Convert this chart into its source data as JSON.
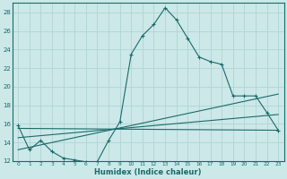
{
  "background_color": "#cce8e8",
  "grid_color": "#b0d4d4",
  "line_color": "#1a6b6b",
  "xlabel": "Humidex (Indice chaleur)",
  "xlim": [
    -0.5,
    23.5
  ],
  "ylim": [
    12,
    29
  ],
  "yticks": [
    12,
    14,
    16,
    18,
    20,
    22,
    24,
    26,
    28
  ],
  "xticks": [
    0,
    1,
    2,
    3,
    4,
    5,
    6,
    7,
    8,
    9,
    10,
    11,
    12,
    13,
    14,
    15,
    16,
    17,
    18,
    19,
    20,
    21,
    22,
    23
  ],
  "line1_x": [
    0,
    1,
    2,
    3,
    4,
    5,
    6,
    7,
    8,
    9,
    10,
    11,
    12,
    13,
    14,
    15,
    16,
    17,
    18,
    19,
    20,
    21,
    22,
    23
  ],
  "line1_y": [
    15.8,
    13.2,
    14.2,
    13.0,
    12.3,
    12.1,
    11.9,
    11.9,
    14.2,
    16.2,
    23.5,
    25.5,
    26.7,
    28.5,
    27.2,
    25.2,
    23.2,
    22.7,
    22.4,
    19.0,
    19.0,
    19.0,
    17.2,
    15.3
  ],
  "line2_x": [
    0,
    23
  ],
  "line2_y": [
    15.5,
    15.3
  ],
  "line3_x": [
    0,
    23
  ],
  "line3_y": [
    13.2,
    19.2
  ],
  "line4_x": [
    0,
    23
  ],
  "line4_y": [
    14.5,
    17.0
  ]
}
